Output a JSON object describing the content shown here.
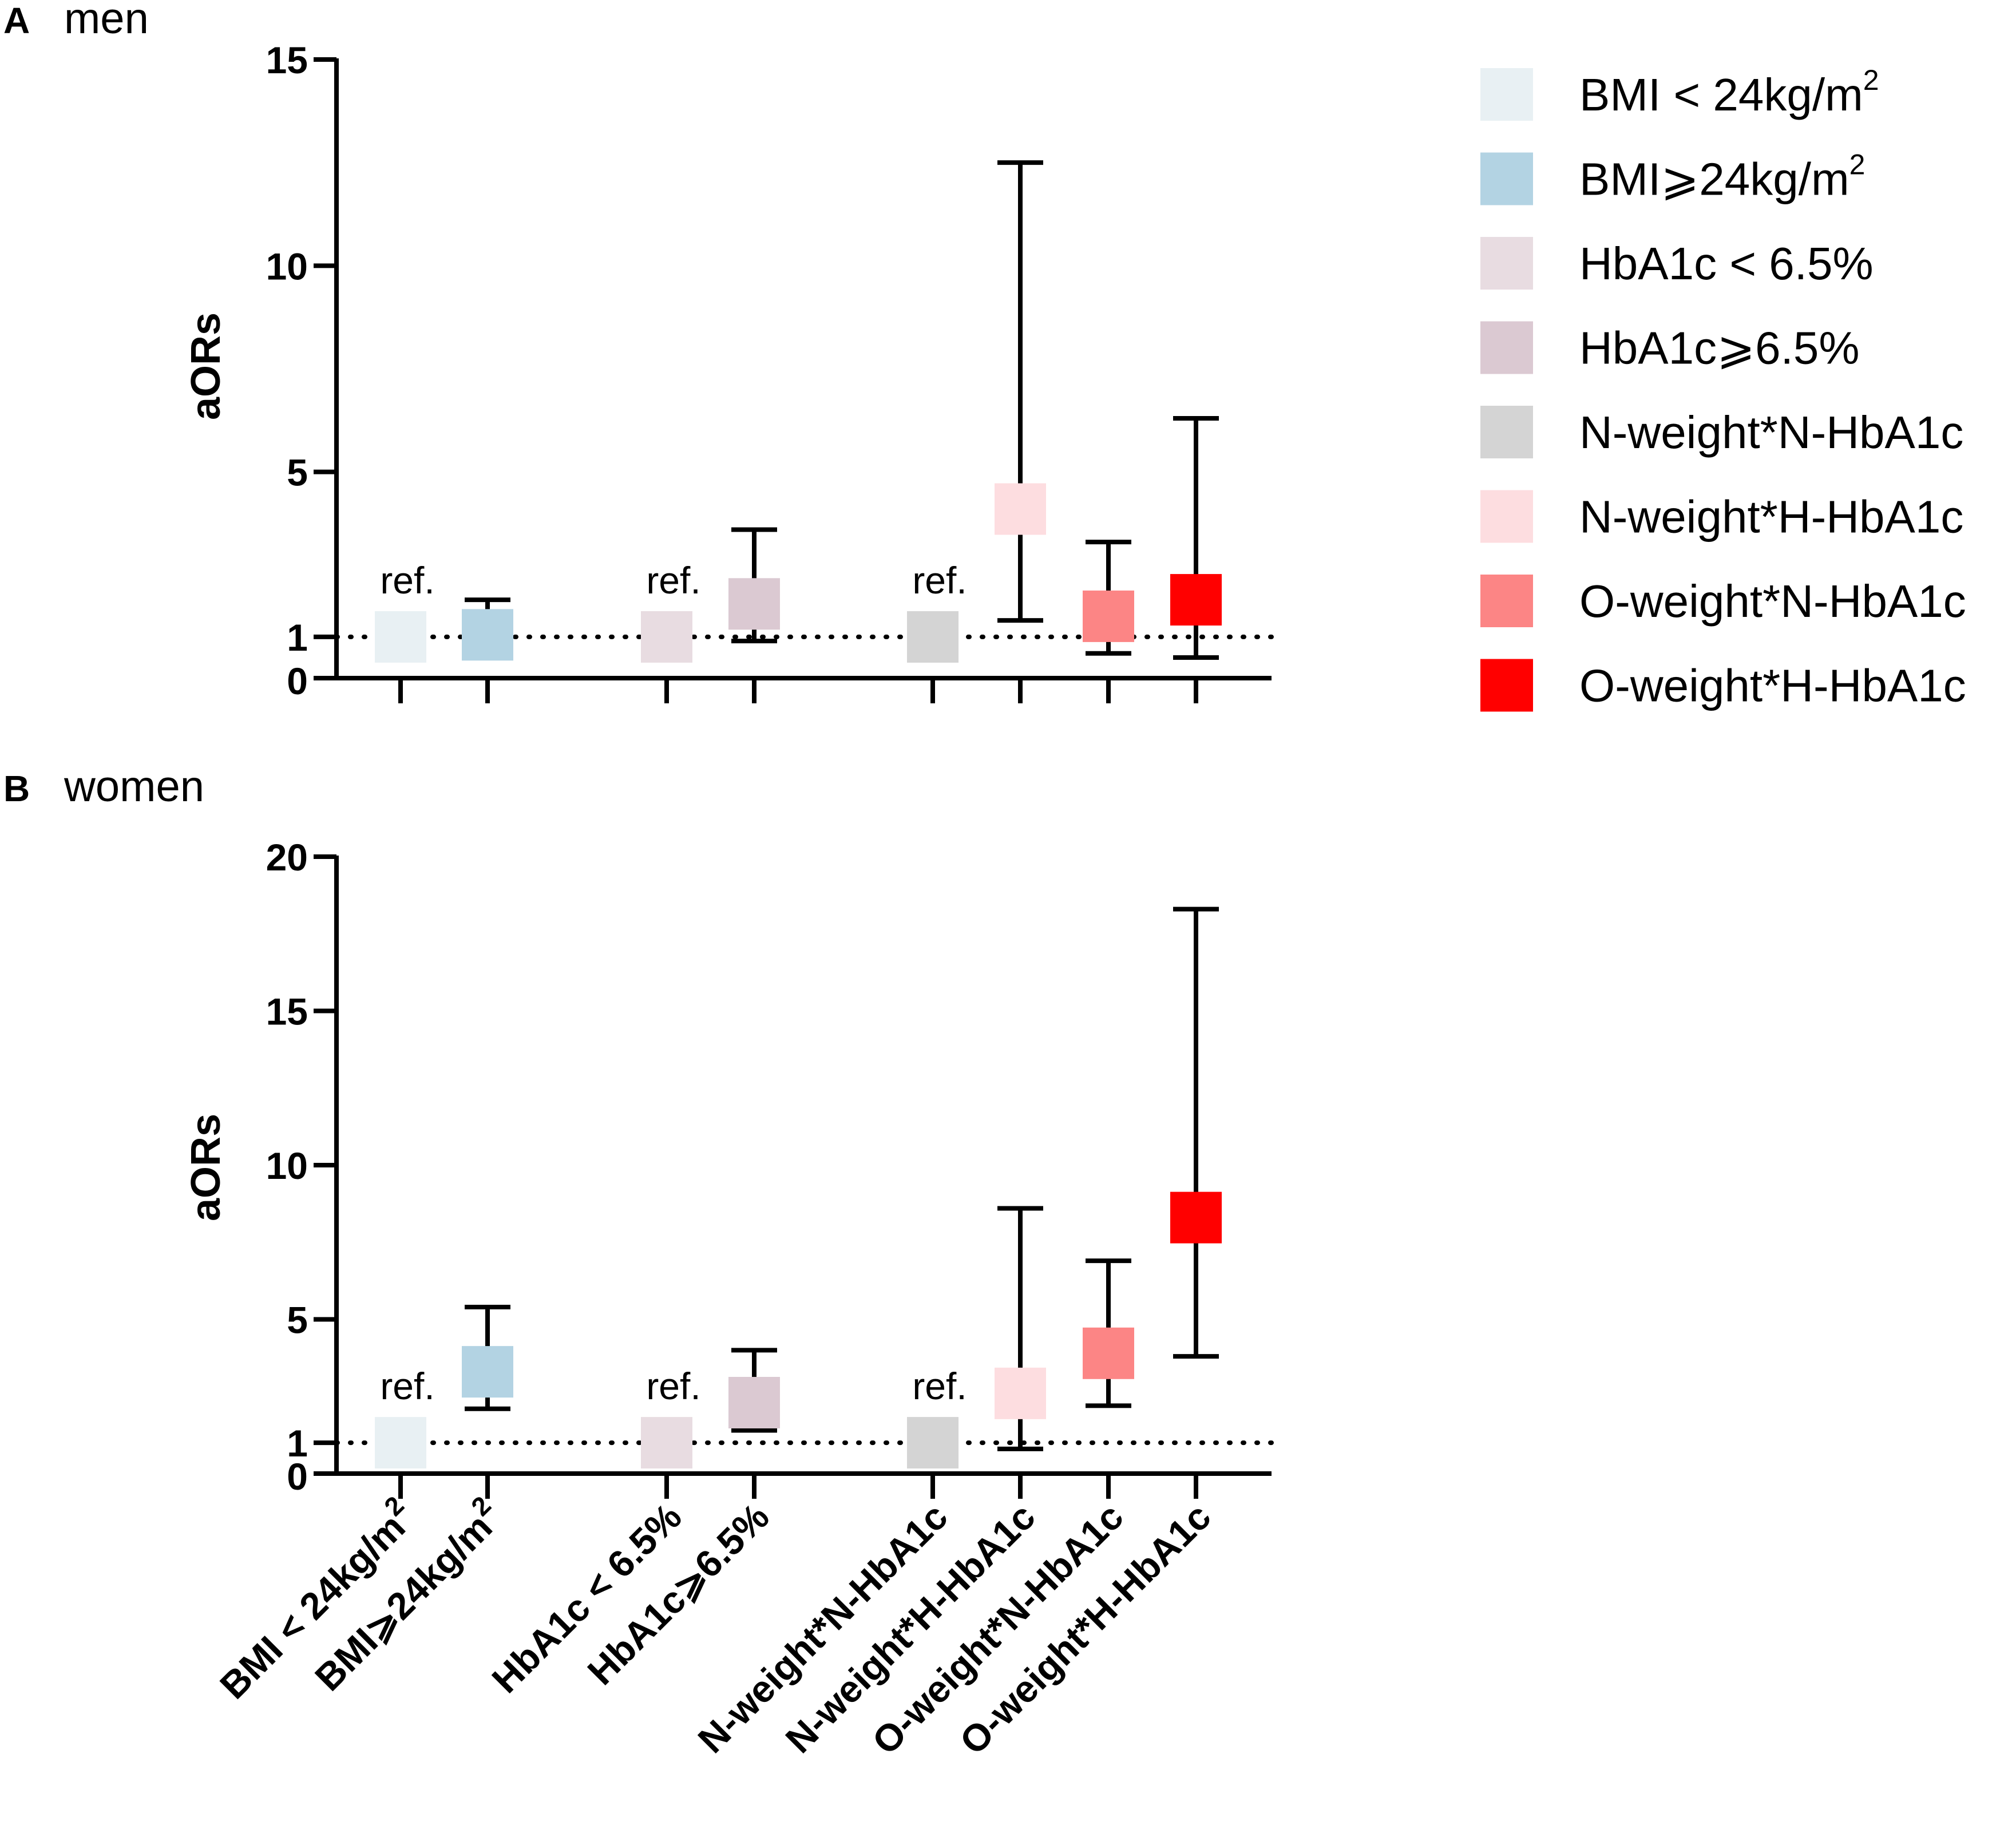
{
  "chart_data": [
    {
      "type": "scatter",
      "panel": "A",
      "title": "men",
      "ylabel": "aORs",
      "ylim": [
        0,
        15
      ],
      "yticks": [
        0,
        1,
        5,
        10,
        15
      ],
      "reference_line": 1,
      "ref_label": "ref.",
      "categories": [
        "BMI < 24kg/m2",
        "BMI≥24kg/m2",
        "HbA1c < 6.5%",
        "HbA1c≥6.5%",
        "N-weight*N-HbA1c",
        "N-weight*H-HbA1c",
        "O-weight*N-HbA1c",
        "O-weight*H-HbA1c"
      ],
      "points": [
        {
          "category": "BMI < 24kg/m2",
          "value": 1.0,
          "lower": null,
          "upper": null,
          "ref": true
        },
        {
          "category": "BMI≥24kg/m2",
          "value": 1.05,
          "lower": 0.95,
          "upper": 1.9,
          "ref": false
        },
        {
          "category": "HbA1c < 6.5%",
          "value": 1.0,
          "lower": null,
          "upper": null,
          "ref": true
        },
        {
          "category": "HbA1c≥6.5%",
          "value": 1.8,
          "lower": 0.9,
          "upper": 3.6,
          "ref": false
        },
        {
          "category": "N-weight*N-HbA1c",
          "value": 1.0,
          "lower": null,
          "upper": null,
          "ref": true
        },
        {
          "category": "N-weight*H-HbA1c",
          "value": 4.1,
          "lower": 1.4,
          "upper": 12.5,
          "ref": false
        },
        {
          "category": "O-weight*N-HbA1c",
          "value": 1.5,
          "lower": 0.6,
          "upper": 3.3,
          "ref": false
        },
        {
          "category": "O-weight*H-HbA1c",
          "value": 1.9,
          "lower": 0.5,
          "upper": 6.3,
          "ref": false
        }
      ]
    },
    {
      "type": "scatter",
      "panel": "B",
      "title": "women",
      "ylabel": "aORs",
      "ylim": [
        0,
        20
      ],
      "yticks": [
        0,
        1,
        5,
        10,
        15,
        20
      ],
      "reference_line": 1,
      "ref_label": "ref.",
      "categories": [
        "BMI < 24kg/m2",
        "BMI≥24kg/m2",
        "HbA1c < 6.5%",
        "HbA1c≥6.5%",
        "N-weight*N-HbA1c",
        "N-weight*H-HbA1c",
        "O-weight*N-HbA1c",
        "O-weight*H-HbA1c"
      ],
      "points": [
        {
          "category": "BMI < 24kg/m2",
          "value": 1.0,
          "lower": null,
          "upper": null,
          "ref": true
        },
        {
          "category": "BMI≥24kg/m2",
          "value": 3.3,
          "lower": 2.1,
          "upper": 5.4,
          "ref": false
        },
        {
          "category": "HbA1c < 6.5%",
          "value": 1.0,
          "lower": null,
          "upper": null,
          "ref": true
        },
        {
          "category": "HbA1c≥6.5%",
          "value": 2.3,
          "lower": 1.4,
          "upper": 4.0,
          "ref": false
        },
        {
          "category": "N-weight*N-HbA1c",
          "value": 1.0,
          "lower": null,
          "upper": null,
          "ref": true
        },
        {
          "category": "N-weight*H-HbA1c",
          "value": 2.6,
          "lower": 0.8,
          "upper": 8.6,
          "ref": false
        },
        {
          "category": "O-weight*N-HbA1c",
          "value": 3.9,
          "lower": 2.2,
          "upper": 6.9,
          "ref": false
        },
        {
          "category": "O-weight*H-HbA1c",
          "value": 8.3,
          "lower": 3.8,
          "upper": 18.3,
          "ref": false
        }
      ]
    }
  ],
  "legend": {
    "items": [
      {
        "label": "BMI < 24kg/m",
        "sup": "2",
        "color": "#E8F0F3"
      },
      {
        "label": "BMI⩾24kg/m",
        "sup": "2",
        "color": "#B3D3E3"
      },
      {
        "label": "HbA1c < 6.5%",
        "sup": "",
        "color": "#E8DCE1"
      },
      {
        "label": "HbA1c⩾6.5%",
        "sup": "",
        "color": "#DBC9D2"
      },
      {
        "label": "N-weight*N-HbA1c",
        "sup": "",
        "color": "#D4D4D4"
      },
      {
        "label": "N-weight*H-HbA1c",
        "sup": "",
        "color": "#FDDDE0"
      },
      {
        "label": "O-weight*N-HbA1c",
        "sup": "",
        "color": "#FC8585"
      },
      {
        "label": "O-weight*H-HbA1c",
        "sup": "",
        "color": "#FF0000"
      }
    ]
  },
  "x_tick_labels": [
    {
      "label": "BMI < 24kg/m",
      "sup": "2"
    },
    {
      "label": "BMI⩾24kg/m",
      "sup": "2"
    },
    {
      "label": "HbA1c < 6.5%",
      "sup": ""
    },
    {
      "label": "HbA1c⩾6.5%",
      "sup": ""
    },
    {
      "label": "N-weight*N-HbA1c",
      "sup": ""
    },
    {
      "label": "N-weight*H-HbA1c",
      "sup": ""
    },
    {
      "label": "O-weight*N-HbA1c",
      "sup": ""
    },
    {
      "label": "O-weight*H-HbA1c",
      "sup": ""
    }
  ]
}
